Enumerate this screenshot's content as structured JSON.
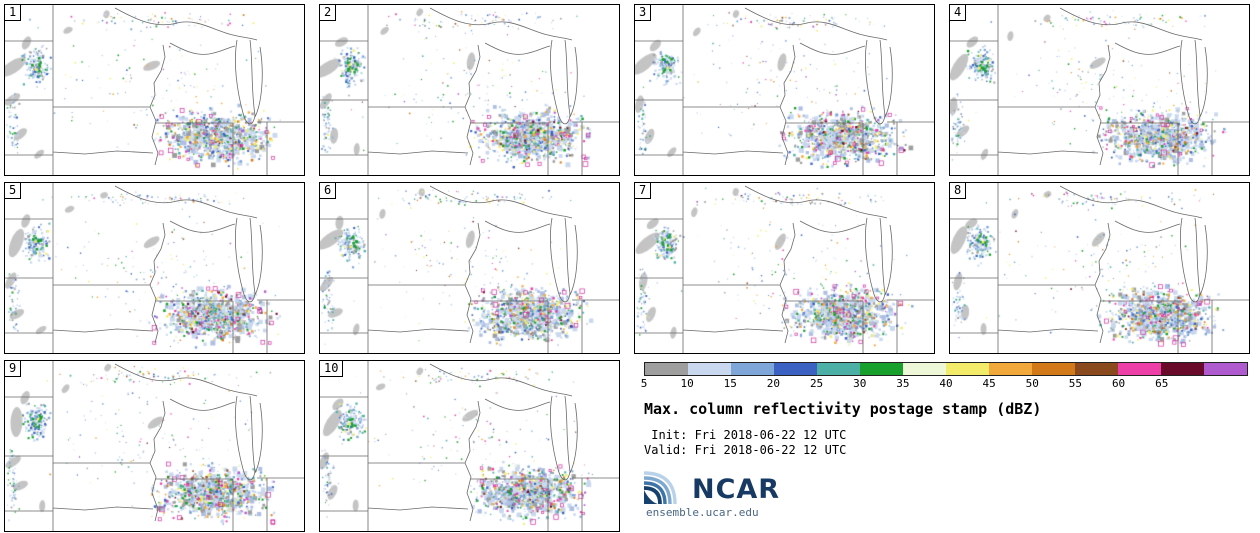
{
  "panels": [
    {
      "id": "1"
    },
    {
      "id": "2"
    },
    {
      "id": "3"
    },
    {
      "id": "4"
    },
    {
      "id": "5"
    },
    {
      "id": "6"
    },
    {
      "id": "7"
    },
    {
      "id": "8"
    },
    {
      "id": "9"
    },
    {
      "id": "10"
    }
  ],
  "legend": {
    "title": "Max. column reflectivity postage stamp (dBZ)",
    "init_label": " Init: Fri 2018-06-22 12 UTC",
    "valid_label": "Valid: Fri 2018-06-22 12 UTC",
    "ticks": [
      "5",
      "10",
      "15",
      "20",
      "25",
      "30",
      "35",
      "40",
      "45",
      "50",
      "55",
      "60",
      "65"
    ],
    "colors": [
      "#9e9e9e",
      "#c9d8ee",
      "#7ea6d8",
      "#3b62c2",
      "#4db0a6",
      "#19a02c",
      "#eef8d8",
      "#f3ec6a",
      "#f2a93b",
      "#d27a1a",
      "#8a4a1e",
      "#ee3fa8",
      "#6a0a2a",
      "#b05ad0"
    ]
  },
  "branding": {
    "logo_text": "NCAR",
    "site": "ensemble.ucar.edu"
  },
  "chart_data": {
    "type": "heatmap",
    "title": "Max. column reflectivity postage stamp (dBZ)",
    "variable": "Max. column reflectivity",
    "units": "dBZ",
    "panel_labels": [
      "1",
      "2",
      "3",
      "4",
      "5",
      "6",
      "7",
      "8",
      "9",
      "10"
    ],
    "n_ensemble_members": 10,
    "init_time": "Fri 2018-06-22 12 UTC",
    "valid_time": "Fri 2018-06-22 12 UTC",
    "colorbar_ticks": [
      5,
      10,
      15,
      20,
      25,
      30,
      35,
      40,
      45,
      50,
      55,
      60,
      65
    ],
    "colorbar_colors": [
      "#9e9e9e",
      "#c9d8ee",
      "#7ea6d8",
      "#3b62c2",
      "#4db0a6",
      "#19a02c",
      "#eef8d8",
      "#f3ec6a",
      "#f2a93b",
      "#d27a1a",
      "#8a4a1e",
      "#ee3fa8",
      "#6a0a2a",
      "#b05ad0"
    ],
    "legend_position": "bottom-right",
    "map_region": "Upper Midwest United States state outlines with Lake Michigan",
    "notes": "10 ensemble-member postage-stamp radar reflectivity maps; strongest echoes concentrated in the lower-right (Iowa/Illinois/Missouri) of each panel, secondary cluster on the west edge"
  }
}
